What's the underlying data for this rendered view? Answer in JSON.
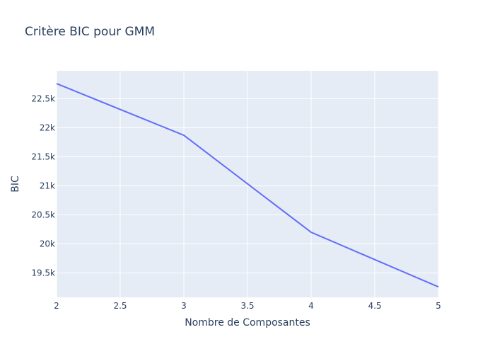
{
  "colors": {
    "plot_background": "#E5ECF6",
    "gridline": "#FFFFFF",
    "text": "#2A3F5F",
    "series_line": "#636EFA"
  },
  "chart_data": {
    "type": "line",
    "title": "Critère BIC pour GMM",
    "xlabel": "Nombre de Composantes",
    "ylabel": "BIC",
    "x": [
      2,
      3,
      4,
      5
    ],
    "xlim": [
      2,
      5
    ],
    "ylim": [
      19080,
      22980
    ],
    "grid": true,
    "legend": "none",
    "x_ticks": [
      {
        "value": 2,
        "label": "2"
      },
      {
        "value": 2.5,
        "label": "2.5"
      },
      {
        "value": 3,
        "label": "3"
      },
      {
        "value": 3.5,
        "label": "3.5"
      },
      {
        "value": 4,
        "label": "4"
      },
      {
        "value": 4.5,
        "label": "4.5"
      },
      {
        "value": 5,
        "label": "5"
      }
    ],
    "y_ticks": [
      {
        "value": 19500,
        "label": "19.5k"
      },
      {
        "value": 20000,
        "label": "20k"
      },
      {
        "value": 20500,
        "label": "20.5k"
      },
      {
        "value": 21000,
        "label": "21k"
      },
      {
        "value": 21500,
        "label": "21.5k"
      },
      {
        "value": 22000,
        "label": "22k"
      },
      {
        "value": 22500,
        "label": "22.5k"
      }
    ],
    "series": [
      {
        "values": [
          22760,
          21870,
          20200,
          19260
        ]
      }
    ]
  }
}
